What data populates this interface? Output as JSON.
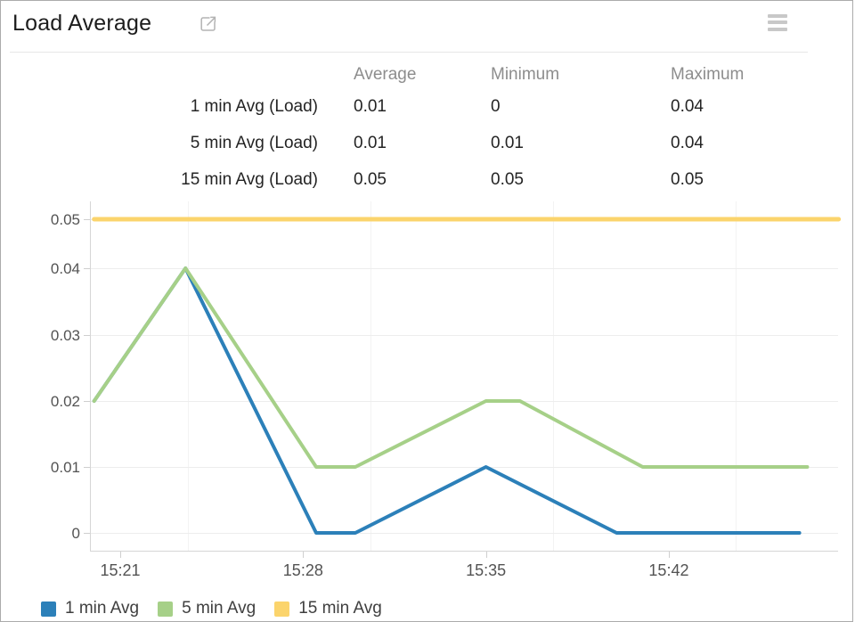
{
  "header": {
    "title": "Load Average"
  },
  "stats_table": {
    "columns": [
      "Average",
      "Minimum",
      "Maximum"
    ],
    "rows": [
      {
        "label": "1 min Avg (Load)",
        "average": "0.01",
        "minimum": "0",
        "maximum": "0.04"
      },
      {
        "label": "5 min Avg (Load)",
        "average": "0.01",
        "minimum": "0.01",
        "maximum": "0.04"
      },
      {
        "label": "15 min Avg (Load)",
        "average": "0.05",
        "minimum": "0.05",
        "maximum": "0.05"
      }
    ]
  },
  "chart_data": {
    "type": "line",
    "title": "Load Average",
    "xlabel": "",
    "ylabel": "",
    "x_axis": {
      "tick_labels": [
        "15:21",
        "15:28",
        "15:35",
        "15:42"
      ],
      "tick_minutes": [
        21,
        28,
        35,
        42
      ],
      "domain_minutes": [
        19.84,
        48.5
      ],
      "unit": "time HH:MM"
    },
    "y_axis": {
      "tick_labels": [
        "0",
        "0.01",
        "0.02",
        "0.03",
        "0.04",
        "0.05"
      ],
      "tick_values": [
        0,
        0.01,
        0.02,
        0.03,
        0.04,
        0.05
      ],
      "range": [
        0,
        0.05
      ]
    },
    "grid": true,
    "legend_position": "bottom",
    "series": [
      {
        "name": "1 min Avg",
        "color": "#2c80b9",
        "points_min_val": [
          [
            20,
            0.02
          ],
          [
            23.5,
            0.04
          ],
          [
            28.5,
            0
          ],
          [
            30,
            0
          ],
          [
            35,
            0.01
          ],
          [
            40,
            0
          ],
          [
            47,
            0
          ]
        ]
      },
      {
        "name": "5 min Avg",
        "color": "#a6d088",
        "points_min_val": [
          [
            20,
            0.02
          ],
          [
            23.5,
            0.04
          ],
          [
            28.5,
            0.01
          ],
          [
            30,
            0.01
          ],
          [
            35,
            0.02
          ],
          [
            36.3,
            0.02
          ],
          [
            41,
            0.01
          ],
          [
            47.3,
            0.01
          ]
        ]
      },
      {
        "name": "15 min Avg",
        "color": "#fbd46c",
        "points_min_val": [
          [
            20,
            0.05
          ],
          [
            48.5,
            0.05
          ]
        ]
      }
    ]
  },
  "legend": {
    "items": [
      {
        "label": "1 min Avg",
        "color": "#2c80b9"
      },
      {
        "label": "5 min Avg",
        "color": "#a6d088"
      },
      {
        "label": "15 min Avg",
        "color": "#fbd46c"
      }
    ]
  },
  "colors": {
    "series_blue": "#2c80b9",
    "series_green": "#a6d088",
    "series_yellow": "#fbd46c",
    "gridline": "#ededed",
    "axis_line": "#d6d6d6",
    "axis_text": "#535353"
  }
}
